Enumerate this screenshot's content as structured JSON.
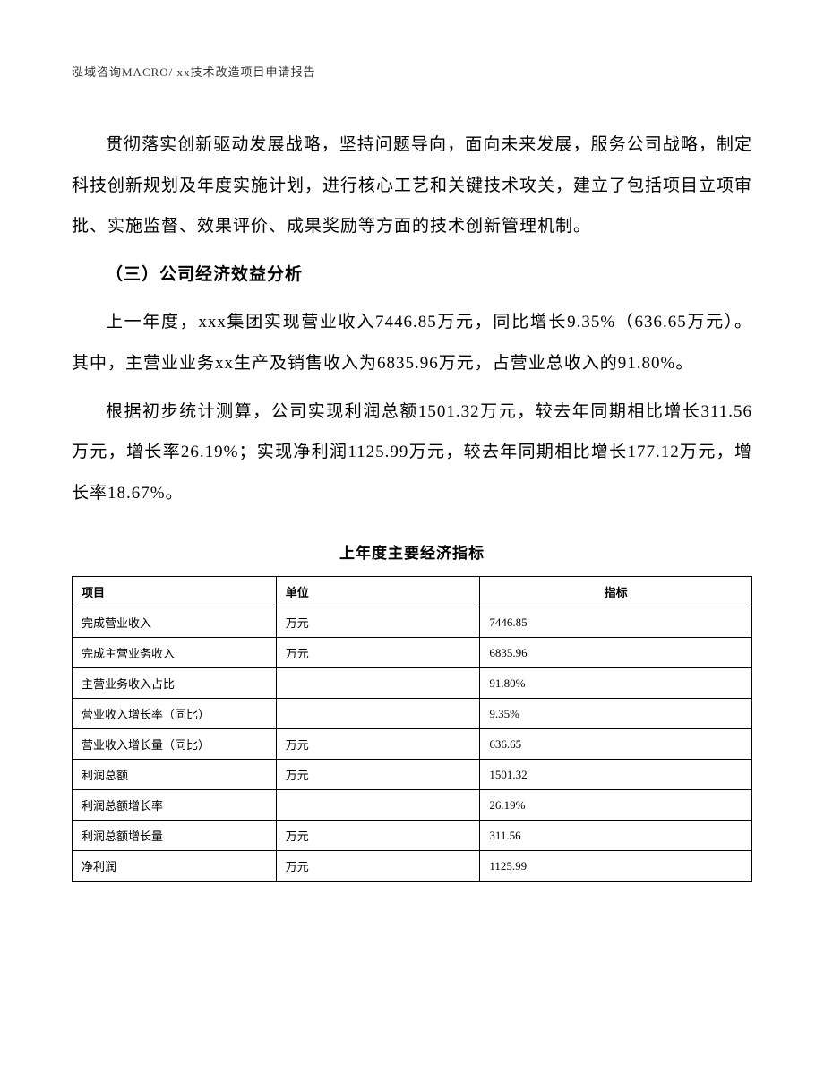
{
  "header": {
    "text": "泓域咨询MACRO/   xx技术改造项目申请报告"
  },
  "paragraphs": {
    "p1": "贯彻落实创新驱动发展战略，坚持问题导向，面向未来发展，服务公司战略，制定科技创新规划及年度实施计划，进行核心工艺和关键技术攻关，建立了包括项目立项审批、实施监督、效果评价、成果奖励等方面的技术创新管理机制。",
    "heading": "（三）公司经济效益分析",
    "p2": "上一年度，xxx集团实现营业收入7446.85万元，同比增长9.35%（636.65万元）。其中，主营业业务xx生产及销售收入为6835.96万元，占营业总收入的91.80%。",
    "p3": "根据初步统计测算，公司实现利润总额1501.32万元，较去年同期相比增长311.56万元，增长率26.19%；实现净利润1125.99万元，较去年同期相比增长177.12万元，增长率18.67%。"
  },
  "table": {
    "title": "上年度主要经济指标",
    "columns": {
      "project": "项目",
      "unit": "单位",
      "value": "指标"
    },
    "rows": [
      {
        "project": "完成营业收入",
        "unit": "万元",
        "value": "7446.85"
      },
      {
        "project": "完成主营业务收入",
        "unit": "万元",
        "value": "6835.96"
      },
      {
        "project": "主营业务收入占比",
        "unit": "",
        "value": "91.80%"
      },
      {
        "project": "营业收入增长率（同比）",
        "unit": "",
        "value": "9.35%"
      },
      {
        "project": "营业收入增长量（同比）",
        "unit": "万元",
        "value": "636.65"
      },
      {
        "project": "利润总额",
        "unit": "万元",
        "value": "1501.32"
      },
      {
        "project": "利润总额增长率",
        "unit": "",
        "value": "26.19%"
      },
      {
        "project": "利润总额增长量",
        "unit": "万元",
        "value": "311.56"
      },
      {
        "project": "净利润",
        "unit": "万元",
        "value": "1125.99"
      }
    ]
  }
}
